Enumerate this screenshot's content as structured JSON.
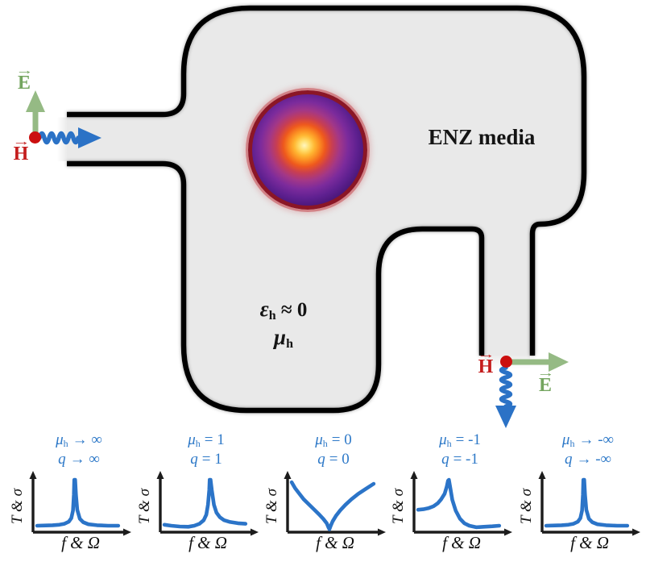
{
  "figure": {
    "enz_label": "ENZ media",
    "host": {
      "eps_base": "ε",
      "eps_sub": "h",
      "eps_rest": " ≈ 0",
      "mu_base": "μ",
      "mu_sub": "h"
    },
    "input_port": {
      "vec": "→",
      "e_label": "E",
      "h_label": "H"
    },
    "output_port": {
      "vec": "→",
      "e_label": "E",
      "h_label": "H"
    }
  },
  "colors": {
    "body_fill": "#e9e9e9",
    "outline": "#000000",
    "wave_blue": "#2b72c6",
    "curve_blue": "#2b74c8",
    "title_blue": "#2e79c8",
    "field_green": "#95ba84",
    "e_label_green": "#74a55f",
    "h_label_red": "#c41d1d",
    "dot_red": "#cb0f0f",
    "particle_ring": "#8b1626",
    "axis_black": "#1c1c1c"
  },
  "chart_data": [
    {
      "type": "line",
      "curve": "sharp-resonance-peak",
      "title_mu_base": "μ",
      "title_mu_sub": "h",
      "title_mu_rest": "→ ∞",
      "title_q_base": "q",
      "title_q_rest": "→ ∞",
      "xlabel": "f & Ω",
      "ylabel": "T & σ",
      "points": [
        [
          0.02,
          0.08
        ],
        [
          0.12,
          0.085
        ],
        [
          0.2,
          0.09
        ],
        [
          0.28,
          0.1
        ],
        [
          0.34,
          0.12
        ],
        [
          0.39,
          0.16
        ],
        [
          0.42,
          0.23
        ],
        [
          0.44,
          0.38
        ],
        [
          0.45,
          0.7
        ],
        [
          0.455,
          1.0
        ],
        [
          0.465,
          1.0
        ],
        [
          0.475,
          0.7
        ],
        [
          0.49,
          0.4
        ],
        [
          0.52,
          0.22
        ],
        [
          0.56,
          0.15
        ],
        [
          0.62,
          0.11
        ],
        [
          0.72,
          0.09
        ],
        [
          0.85,
          0.08
        ],
        [
          0.97,
          0.08
        ]
      ]
    },
    {
      "type": "line",
      "curve": "resonance-peak-right-tail",
      "title_mu_base": "μ",
      "title_mu_sub": "h",
      "title_mu_rest": "= 1",
      "title_q_base": "q",
      "title_q_rest": "= 1",
      "xlabel": "f & Ω",
      "ylabel": "T & σ",
      "points": [
        [
          0.02,
          0.1
        ],
        [
          0.1,
          0.08
        ],
        [
          0.2,
          0.065
        ],
        [
          0.3,
          0.06
        ],
        [
          0.37,
          0.08
        ],
        [
          0.43,
          0.12
        ],
        [
          0.48,
          0.19
        ],
        [
          0.51,
          0.3
        ],
        [
          0.53,
          0.5
        ],
        [
          0.545,
          0.8
        ],
        [
          0.55,
          1.0
        ],
        [
          0.56,
          1.0
        ],
        [
          0.575,
          0.8
        ],
        [
          0.6,
          0.5
        ],
        [
          0.63,
          0.34
        ],
        [
          0.67,
          0.25
        ],
        [
          0.72,
          0.19
        ],
        [
          0.79,
          0.155
        ],
        [
          0.88,
          0.13
        ],
        [
          0.97,
          0.12
        ]
      ]
    },
    {
      "type": "line",
      "curve": "antiresonance-dip",
      "title_mu_base": "μ",
      "title_mu_sub": "h",
      "title_mu_rest": "= 0",
      "title_q_base": "q",
      "title_q_rest": "= 0",
      "xlabel": "f & Ω",
      "ylabel": "T & σ",
      "points": [
        [
          0.02,
          0.95
        ],
        [
          0.06,
          0.83
        ],
        [
          0.11,
          0.72
        ],
        [
          0.16,
          0.61
        ],
        [
          0.22,
          0.51
        ],
        [
          0.28,
          0.41
        ],
        [
          0.34,
          0.31
        ],
        [
          0.39,
          0.22
        ],
        [
          0.43,
          0.13
        ],
        [
          0.45,
          0.05
        ],
        [
          0.462,
          0.01
        ],
        [
          0.475,
          0.07
        ],
        [
          0.5,
          0.17
        ],
        [
          0.54,
          0.28
        ],
        [
          0.59,
          0.39
        ],
        [
          0.65,
          0.5
        ],
        [
          0.72,
          0.61
        ],
        [
          0.8,
          0.72
        ],
        [
          0.89,
          0.82
        ],
        [
          0.98,
          0.92
        ]
      ]
    },
    {
      "type": "line",
      "curve": "resonance-peak-left-shoulder",
      "title_mu_base": "μ",
      "title_mu_sub": "h",
      "title_mu_rest": "= -1",
      "title_q_base": "q",
      "title_q_rest": "= -1",
      "xlabel": "f & Ω",
      "ylabel": "T & σ",
      "points": [
        [
          0.02,
          0.4
        ],
        [
          0.08,
          0.41
        ],
        [
          0.14,
          0.43
        ],
        [
          0.2,
          0.47
        ],
        [
          0.25,
          0.53
        ],
        [
          0.29,
          0.61
        ],
        [
          0.33,
          0.72
        ],
        [
          0.355,
          0.86
        ],
        [
          0.37,
          0.98
        ],
        [
          0.38,
          1.0
        ],
        [
          0.395,
          0.85
        ],
        [
          0.42,
          0.6
        ],
        [
          0.46,
          0.38
        ],
        [
          0.51,
          0.22
        ],
        [
          0.56,
          0.13
        ],
        [
          0.62,
          0.08
        ],
        [
          0.7,
          0.05
        ],
        [
          0.79,
          0.06
        ],
        [
          0.89,
          0.07
        ],
        [
          0.97,
          0.08
        ]
      ]
    },
    {
      "type": "line",
      "curve": "sharp-resonance-peak",
      "title_mu_base": "μ",
      "title_mu_sub": "h",
      "title_mu_rest": "→ -∞",
      "title_q_base": "q",
      "title_q_rest": "→ -∞",
      "xlabel": "f & Ω",
      "ylabel": "T & σ",
      "points": [
        [
          0.02,
          0.08
        ],
        [
          0.12,
          0.085
        ],
        [
          0.2,
          0.09
        ],
        [
          0.28,
          0.1
        ],
        [
          0.34,
          0.12
        ],
        [
          0.39,
          0.16
        ],
        [
          0.42,
          0.23
        ],
        [
          0.44,
          0.38
        ],
        [
          0.45,
          0.7
        ],
        [
          0.455,
          1.0
        ],
        [
          0.465,
          1.0
        ],
        [
          0.475,
          0.7
        ],
        [
          0.49,
          0.4
        ],
        [
          0.52,
          0.22
        ],
        [
          0.56,
          0.15
        ],
        [
          0.62,
          0.11
        ],
        [
          0.72,
          0.09
        ],
        [
          0.85,
          0.08
        ],
        [
          0.97,
          0.08
        ]
      ]
    }
  ]
}
